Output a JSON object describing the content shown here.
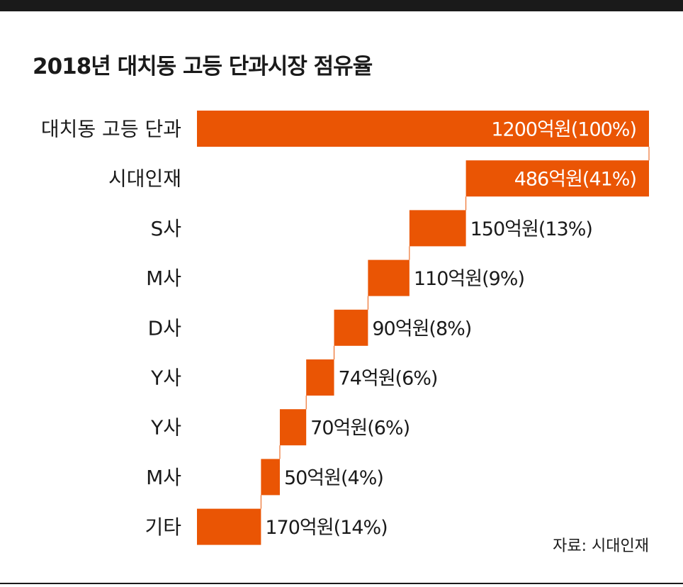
{
  "colors": {
    "bar": "#ea5504",
    "label_inside": "#ffffff",
    "label_outside": "#1a1a1a",
    "rule": "#1a1a1a"
  },
  "chart_data": {
    "type": "bar",
    "subtype": "waterfall",
    "orientation": "horizontal",
    "title": "2018년 대치동 고등 단과시장 점유율",
    "categories": [
      "대치동 고등 단과",
      "시대인재",
      "S사",
      "M사",
      "D사",
      "Y사",
      "Y사",
      "M사",
      "기타"
    ],
    "values": [
      1200,
      486,
      150,
      110,
      90,
      74,
      70,
      50,
      170
    ],
    "unit": "억원",
    "percents": [
      100,
      41,
      13,
      9,
      8,
      6,
      6,
      4,
      14
    ],
    "labels": [
      "1200억원(100%)",
      "486억원(41%)",
      "150억원(13%)",
      "110억원(9%)",
      "90억원(8%)",
      "74억원(6%)",
      "70억원(6%)",
      "50억원(4%)",
      "170억원(14%)"
    ],
    "total_index": 0,
    "xlim": [
      0,
      1200
    ],
    "grid": false,
    "legend": "none"
  },
  "source_note": "자료: 시대인재"
}
